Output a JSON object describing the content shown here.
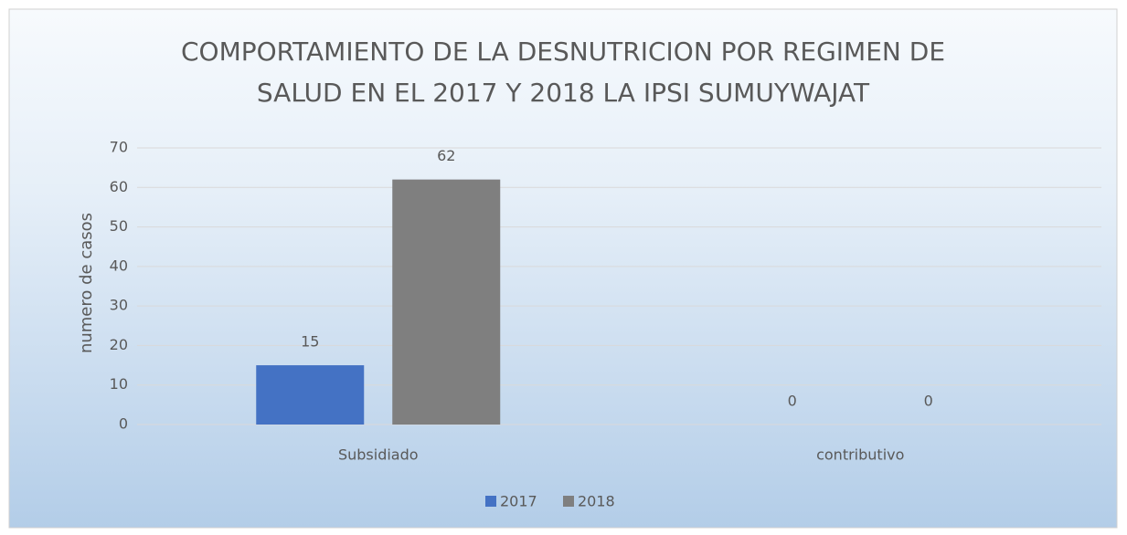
{
  "chart_data": {
    "type": "bar",
    "title": [
      "COMPORTAMIENTO DE LA DESNUTRICION POR REGIMEN DE",
      "SALUD EN EL 2017 Y 2018  LA IPSI SUMUYWAJAT"
    ],
    "y_label": "numero de casos",
    "categories": [
      "Subsidiado",
      "contributivo"
    ],
    "series": [
      {
        "name": "2017",
        "color": "#4472c4",
        "values": [
          15,
          0
        ]
      },
      {
        "name": "2018",
        "color": "#7f7f7f",
        "values": [
          62,
          0
        ]
      }
    ],
    "ylim": [
      0,
      70
    ],
    "yticks": [
      0,
      10,
      20,
      30,
      40,
      50,
      60,
      70
    ],
    "grid": true,
    "legend": "bottom",
    "data_labels": true
  }
}
